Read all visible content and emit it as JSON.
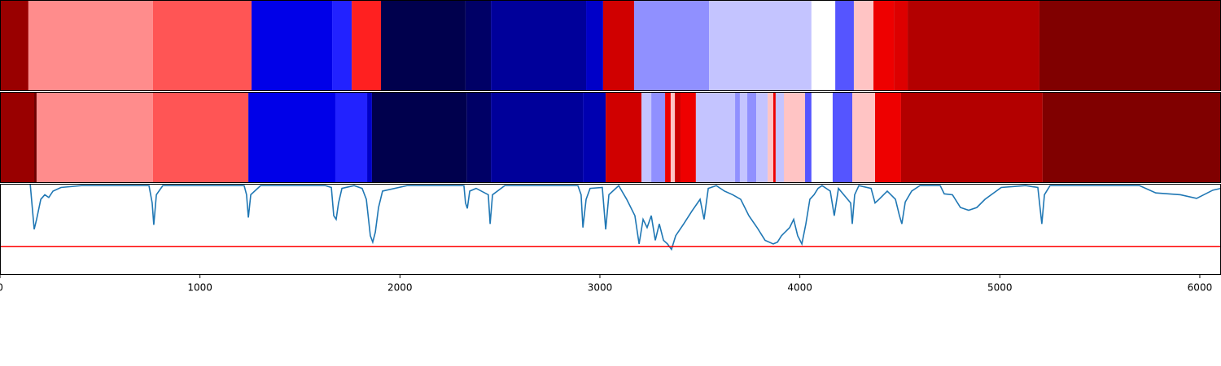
{
  "chart_data": {
    "type": "segmentation",
    "xlim": [
      0,
      6106
    ],
    "xticks": [
      0,
      1000,
      2000,
      3000,
      4000,
      5000,
      6000
    ],
    "rows": [
      {
        "bins": [
          0,
          142,
          765,
          1258,
          1661,
          1759,
          1905,
          2328,
          2455,
          2931,
          3016,
          3171,
          3546,
          4058,
          4177,
          4270,
          4368,
          4470,
          4539,
          5198,
          6106
        ],
        "colors": [
          "#990000",
          "#ff8c8c",
          "#ff5555",
          "#0000e8",
          "#2222ff",
          "#ff2020",
          "#00004d",
          "#000066",
          "#00009a",
          "#0000c8",
          "#d00000",
          "#9090ff",
          "#c4c4ff",
          "#ffffff",
          "#5555ff",
          "#ffc4c4",
          "#ee0000",
          "#dd0000",
          "#b30000",
          "#800000"
        ]
      },
      {
        "bins": [
          0,
          171,
          183,
          765,
          1242,
          1677,
          1836,
          1860,
          2333,
          2455,
          2915,
          3029,
          3208,
          3257,
          3326,
          3354,
          3375,
          3403,
          3480,
          3676,
          3700,
          3737,
          3782,
          3839,
          3867,
          3879,
          3920,
          4026,
          4058,
          4164,
          4262,
          4376,
          4506,
          5214,
          6106
        ],
        "colors": [
          "#990000",
          "#700000",
          "#ff8c8c",
          "#ff5555",
          "#0000e8",
          "#2222ff",
          "#0000c8",
          "#00004d",
          "#000066",
          "#00009a",
          "#0000b0",
          "#d00000",
          "#c4c4ff",
          "#9090ff",
          "#ee0000",
          "#ffc4c4",
          "#cc0000",
          "#ee0000",
          "#c4c4ff",
          "#9090ff",
          "#c4c4ff",
          "#9090ff",
          "#c4c4ff",
          "#ffc4c4",
          "#ee0000",
          "#c4c4ff",
          "#ffc4c4",
          "#5555ff",
          "#ffffff",
          "#5555ff",
          "#ffc4c4",
          "#ee0000",
          "#b30000",
          "#800000"
        ]
      }
    ],
    "ylim": [
      0,
      1
    ],
    "x": [
      151,
      163,
      171,
      183,
      204,
      224,
      244,
      265,
      305,
      407,
      611,
      745,
      761,
      769,
      782,
      814,
      1221,
      1233,
      1242,
      1254,
      1303,
      1628,
      1657,
      1669,
      1681,
      1693,
      1710,
      1771,
      1811,
      1832,
      1852,
      1864,
      1877,
      1893,
      1913,
      2035,
      2320,
      2328,
      2337,
      2349,
      2381,
      2442,
      2451,
      2463,
      2524,
      2890,
      2906,
      2915,
      2931,
      2951,
      3012,
      3029,
      3045,
      3094,
      3134,
      3175,
      3196,
      3216,
      3236,
      3257,
      3277,
      3297,
      3318,
      3338,
      3358,
      3379,
      3419,
      3460,
      3501,
      3521,
      3542,
      3582,
      3623,
      3664,
      3704,
      3745,
      3786,
      3826,
      3867,
      3888,
      3908,
      3949,
      3969,
      3989,
      4010,
      4030,
      4050,
      4071,
      4091,
      4111,
      4152,
      4172,
      4193,
      4254,
      4262,
      4274,
      4295,
      4356,
      4376,
      4396,
      4437,
      4478,
      4498,
      4510,
      4527,
      4559,
      4600,
      4702,
      4722,
      4763,
      4803,
      4844,
      4885,
      4926,
      5007,
      5129,
      5190,
      5210,
      5223,
      5251,
      5699,
      5780,
      5903,
      5984,
      6065,
      6106
    ],
    "series": [
      {
        "color": "#1f77b4",
        "values": [
          1.0,
          0.7,
          0.5,
          0.61,
          0.83,
          0.88,
          0.85,
          0.92,
          0.96,
          0.98,
          0.98,
          0.98,
          0.79,
          0.55,
          0.88,
          0.98,
          0.98,
          0.88,
          0.63,
          0.88,
          0.98,
          0.98,
          0.96,
          0.65,
          0.61,
          0.79,
          0.95,
          0.98,
          0.95,
          0.83,
          0.43,
          0.36,
          0.47,
          0.74,
          0.92,
          0.98,
          0.98,
          0.79,
          0.73,
          0.92,
          0.95,
          0.88,
          0.56,
          0.88,
          0.98,
          0.98,
          0.88,
          0.52,
          0.83,
          0.95,
          0.96,
          0.5,
          0.88,
          0.98,
          0.83,
          0.65,
          0.34,
          0.61,
          0.52,
          0.65,
          0.38,
          0.56,
          0.38,
          0.34,
          0.28,
          0.43,
          0.56,
          0.7,
          0.83,
          0.61,
          0.95,
          0.98,
          0.92,
          0.88,
          0.83,
          0.65,
          0.52,
          0.38,
          0.34,
          0.36,
          0.43,
          0.52,
          0.61,
          0.43,
          0.34,
          0.56,
          0.83,
          0.88,
          0.95,
          0.98,
          0.92,
          0.65,
          0.95,
          0.79,
          0.56,
          0.88,
          0.98,
          0.95,
          0.79,
          0.83,
          0.92,
          0.83,
          0.65,
          0.56,
          0.8,
          0.92,
          0.98,
          0.98,
          0.89,
          0.88,
          0.74,
          0.71,
          0.74,
          0.83,
          0.96,
          0.98,
          0.96,
          0.56,
          0.88,
          0.98,
          0.98,
          0.9,
          0.88,
          0.84,
          0.93,
          0.95
        ]
      }
    ],
    "threshold": {
      "value": 0.31,
      "color": "#ff0000"
    }
  }
}
